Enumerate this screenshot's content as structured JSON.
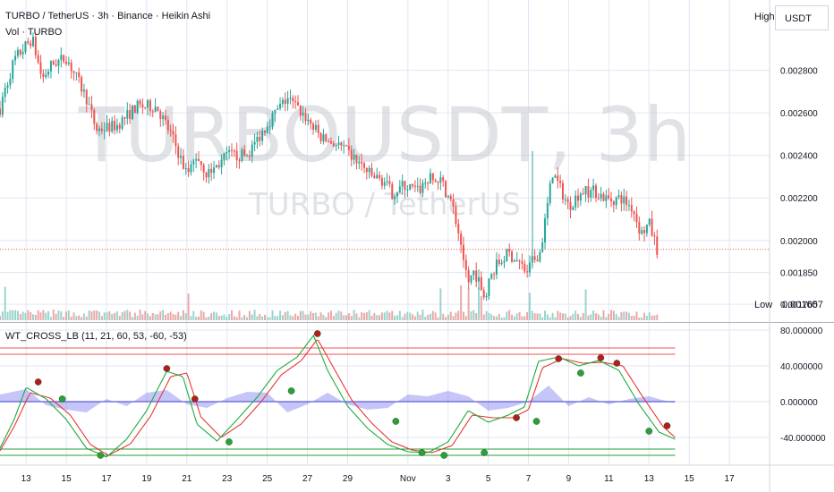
{
  "chart_data": {
    "type": "candlestick",
    "title": "TURBO / TetherUS · 3h · Binance · Heikin Ashi",
    "watermark": {
      "symbol": "TURBOUSDT, 3h",
      "description": "TURBO / TetherUS"
    },
    "volume_label": "Vol · TURBO",
    "quote_currency": "USDT",
    "high_label": "High",
    "low_label": "Low",
    "low_value_label": "0.001657",
    "low_value": 0.001657,
    "last_price": 0.001958,
    "price_axis": {
      "range": [
        0.00165,
        0.00308
      ],
      "ticks": [
        0.0017,
        0.00185,
        0.002,
        0.0022,
        0.0024,
        0.0026,
        0.0028
      ],
      "tick_labels": [
        "0.001700",
        "0.001850",
        "0.002000",
        "0.002200",
        "0.002400",
        "0.002600",
        "0.002800"
      ]
    },
    "x_axis": {
      "ticks": [
        "13",
        "15",
        "17",
        "19",
        "21",
        "23",
        "25",
        "27",
        "29",
        "Nov",
        "3",
        "5",
        "7",
        "9",
        "11",
        "13",
        "15",
        "17"
      ],
      "range_days": [
        -1.3,
        37
      ],
      "tick_days": [
        0,
        2,
        4,
        6,
        8,
        10,
        12,
        14,
        16,
        19,
        21,
        23,
        25,
        27,
        29,
        31,
        33,
        35
      ]
    },
    "price_series": {
      "days": [
        -1.3,
        -0.6,
        0.3,
        0.8,
        1.3,
        2.0,
        3.0,
        3.5,
        4.5,
        5.5,
        6.5,
        7.3,
        8.0,
        8.5,
        9.0,
        9.5,
        10.0,
        11.0,
        12.0,
        13.0,
        14.0,
        14.7,
        15.5,
        16.5,
        17.2,
        17.8,
        18.2,
        18.8,
        19.5,
        20.0,
        20.7,
        21.2,
        21.7,
        22.0,
        22.3,
        22.8,
        23.3,
        24.0,
        24.5,
        24.9,
        25.2,
        25.6,
        26.2,
        27.0,
        27.6,
        28.3,
        29.0,
        29.6,
        30.2,
        30.6,
        31.0,
        31.4
      ],
      "values": [
        0.00262,
        0.00285,
        0.00295,
        0.00276,
        0.00283,
        0.00286,
        0.00267,
        0.00252,
        0.00254,
        0.00263,
        0.00263,
        0.00248,
        0.00231,
        0.0024,
        0.00231,
        0.00235,
        0.0024,
        0.0024,
        0.00255,
        0.00267,
        0.00257,
        0.00248,
        0.00245,
        0.00237,
        0.0023,
        0.00228,
        0.00222,
        0.00226,
        0.00223,
        0.00229,
        0.00227,
        0.00217,
        0.00196,
        0.0018,
        0.00186,
        0.00174,
        0.00187,
        0.00194,
        0.0019,
        0.00185,
        0.0019,
        0.00195,
        0.00232,
        0.00216,
        0.00223,
        0.00223,
        0.00219,
        0.0022,
        0.00215,
        0.00203,
        0.00208,
        0.00196
      ]
    },
    "volume_spike_days": [
      -1.0,
      8.1,
      20.6,
      21.6,
      22.0,
      22.6,
      25.1,
      27.9
    ],
    "wt_cross": {
      "label": "WT_CROSS_LB (11, 21, 60, 53, -60, -53)",
      "params": [
        11,
        21,
        60,
        53,
        -60,
        -53
      ],
      "range": [
        -63,
        86
      ],
      "ticks": [
        80,
        40,
        0,
        -40
      ],
      "tick_labels": [
        "80.000000",
        "40.000000",
        "0.000000",
        "-40.000000"
      ],
      "levels": {
        "overbought_1": 60,
        "overbought_2": 53,
        "oversold_1": -60,
        "oversold_2": -53
      },
      "wt1": {
        "days": [
          -1.3,
          -0.6,
          0.0,
          1.0,
          2.0,
          3.0,
          4.0,
          5.0,
          6.0,
          7.0,
          7.8,
          8.5,
          9.5,
          10.5,
          11.5,
          12.5,
          13.5,
          14.3,
          15.0,
          16.0,
          17.0,
          18.0,
          19.0,
          20.0,
          21.0,
          22.0,
          23.0,
          24.0,
          24.8,
          25.5,
          26.5,
          27.5,
          28.5,
          29.5,
          30.5,
          31.5,
          32.3
        ],
        "values": [
          -52,
          -20,
          16,
          3,
          -20,
          -52,
          -62,
          -42,
          -10,
          34,
          28,
          -25,
          -44,
          -20,
          5,
          35,
          50,
          74,
          35,
          -5,
          -30,
          -48,
          -56,
          -57,
          -45,
          -10,
          -23,
          -15,
          -6,
          45,
          50,
          40,
          46,
          35,
          -3,
          -34,
          -42
        ]
      },
      "wt2": {
        "days": [
          -1.3,
          -0.6,
          0.2,
          1.2,
          2.2,
          3.2,
          4.1,
          5.2,
          6.2,
          7.2,
          8.0,
          8.7,
          9.7,
          10.7,
          11.7,
          12.7,
          13.7,
          14.5,
          15.2,
          16.2,
          17.2,
          18.2,
          19.2,
          20.2,
          21.2,
          22.2,
          23.2,
          24.2,
          25.0,
          25.7,
          26.7,
          27.7,
          28.7,
          29.7,
          30.7,
          31.7,
          32.3
        ],
        "values": [
          -55,
          -28,
          10,
          4,
          -15,
          -48,
          -60,
          -47,
          -16,
          28,
          32,
          -17,
          -40,
          -25,
          0,
          30,
          46,
          70,
          42,
          2,
          -24,
          -45,
          -54,
          -57,
          -49,
          -15,
          -18,
          -18,
          -9,
          38,
          48,
          43,
          44,
          40,
          5,
          -28,
          -40
        ]
      },
      "histogram": {
        "days": [
          -1.3,
          0.0,
          1.0,
          2.0,
          3.0,
          4.0,
          5.0,
          6.0,
          7.0,
          8.0,
          9.0,
          10.0,
          11.0,
          12.0,
          13.0,
          14.0,
          15.0,
          16.0,
          17.0,
          18.0,
          19.0,
          20.0,
          21.0,
          22.0,
          23.0,
          24.0,
          25.0,
          26.0,
          27.0,
          28.0,
          29.0,
          30.0,
          31.0,
          32.3
        ],
        "values": [
          8,
          14,
          -4,
          -9,
          -12,
          3,
          -5,
          10,
          13,
          -3,
          -7,
          4,
          11,
          10,
          -12,
          -3,
          10,
          -3,
          -9,
          -7,
          8,
          6,
          12,
          6,
          -10,
          -7,
          0,
          18,
          -5,
          5,
          -3,
          3,
          6,
          -2
        ]
      },
      "cross_points": [
        {
          "day": 0.6,
          "value": 22,
          "color": "red"
        },
        {
          "day": 1.8,
          "value": 3,
          "color": "green"
        },
        {
          "day": 3.7,
          "value": -60,
          "color": "green"
        },
        {
          "day": 7.0,
          "value": 37,
          "color": "red"
        },
        {
          "day": 8.4,
          "value": 3,
          "color": "red"
        },
        {
          "day": 10.1,
          "value": -45,
          "color": "green"
        },
        {
          "day": 13.2,
          "value": 12,
          "color": "green"
        },
        {
          "day": 14.5,
          "value": 76,
          "color": "red"
        },
        {
          "day": 18.4,
          "value": -22,
          "color": "green"
        },
        {
          "day": 19.7,
          "value": -57,
          "color": "green"
        },
        {
          "day": 20.8,
          "value": -60,
          "color": "green"
        },
        {
          "day": 22.8,
          "value": -57,
          "color": "green"
        },
        {
          "day": 24.4,
          "value": -18,
          "color": "red"
        },
        {
          "day": 25.4,
          "value": -22,
          "color": "green"
        },
        {
          "day": 26.5,
          "value": 48,
          "color": "red"
        },
        {
          "day": 27.6,
          "value": 32,
          "color": "green"
        },
        {
          "day": 28.6,
          "value": 49,
          "color": "red"
        },
        {
          "day": 29.4,
          "value": 43,
          "color": "red"
        },
        {
          "day": 31.0,
          "value": -33,
          "color": "green"
        },
        {
          "day": 31.9,
          "value": -27,
          "color": "red"
        }
      ]
    },
    "colors": {
      "up": "#26a69a",
      "down": "#ef5350",
      "wt1": "#22ab3c",
      "wt2": "#e53935",
      "histogram": "#7e7ef0",
      "level_lines_top": "#ef5350",
      "level_lines_bottom": "#26a037",
      "grid": "#e0e6f5",
      "last_price_line": "#ef5350"
    }
  }
}
